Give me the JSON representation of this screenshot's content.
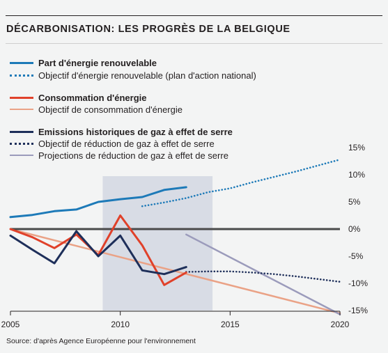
{
  "title": "DÉCARBONISATION: LES PROGRÈS DE LA BELGIQUE",
  "source": "Source: d'après Agence Européenne pour l'environnement",
  "colors": {
    "renewable": "#1d7ab8",
    "consumption": "#e0412a",
    "consumption_target": "#eaa286",
    "emissions": "#1e2f5a",
    "projection": "#9b9bbb",
    "zero_line": "#4a4a4a",
    "highlight": "#d8dce5"
  },
  "legend": [
    {
      "label": "Part d'énergie renouvelable",
      "style": "solid",
      "color": "#1d7ab8",
      "bold": true
    },
    {
      "label": "Objectif d'énergie renouvelable (plan d'action national)",
      "style": "dotted",
      "color": "#1d7ab8",
      "bold": false
    },
    {
      "label": "Consommation d'énergie",
      "style": "solid",
      "color": "#e0412a",
      "bold": true
    },
    {
      "label": "Objectif de consommation d'énergie",
      "style": "thin",
      "color": "#eaa286",
      "bold": false
    },
    {
      "label": "Emissions historiques de gaz à effet de serre",
      "style": "solid",
      "color": "#1e2f5a",
      "bold": true
    },
    {
      "label": "Objectif de réduction de gaz à effet de serre",
      "style": "dotted",
      "color": "#1e2f5a",
      "bold": false
    },
    {
      "label": "Projections de réduction de gaz à effet de serre",
      "style": "thin",
      "color": "#9b9bbb",
      "bold": false
    }
  ],
  "chart_data": {
    "type": "line",
    "title": "DÉCARBONISATION: LES PROGRÈS DE LA BELGIQUE",
    "xlabel": "",
    "ylabel": "",
    "xlim": [
      2005,
      2020
    ],
    "ylim": [
      -15,
      15
    ],
    "x_ticks": [
      "2005",
      "2010",
      "2015",
      "2020"
    ],
    "y_ticks": [
      "15%",
      "10%",
      "5%",
      "0%",
      "-5%",
      "-10%",
      "-15%"
    ],
    "y_tick_values": [
      15,
      10,
      5,
      0,
      -5,
      -10,
      -15
    ],
    "highlight_range": [
      2009.2,
      2014.2
    ],
    "zero_line": 0,
    "grid": false,
    "series": [
      {
        "name": "Part d'énergie renouvelable",
        "style": "solid",
        "color": "#1d7ab8",
        "x": [
          2005,
          2006,
          2007,
          2008,
          2009,
          2010,
          2011,
          2012,
          2013
        ],
        "y": [
          2.2,
          2.6,
          3.3,
          3.6,
          5.0,
          5.5,
          5.9,
          7.2,
          7.7
        ]
      },
      {
        "name": "Objectif d'énergie renouvelable (plan d'action national)",
        "style": "dotted",
        "color": "#1d7ab8",
        "x": [
          2011,
          2012,
          2013,
          2014,
          2015,
          2016,
          2017,
          2018,
          2019,
          2020
        ],
        "y": [
          4.2,
          4.9,
          5.7,
          6.8,
          7.5,
          8.6,
          9.6,
          10.6,
          11.7,
          12.8
        ]
      },
      {
        "name": "Consommation d'énergie",
        "style": "solid",
        "color": "#e0412a",
        "x": [
          2005,
          2006,
          2007,
          2008,
          2009,
          2010,
          2011,
          2012,
          2013
        ],
        "y": [
          0.0,
          -1.5,
          -3.5,
          -1.0,
          -4.8,
          2.5,
          -3.0,
          -10.3,
          -8.0
        ]
      },
      {
        "name": "Objectif de consommation d'énergie",
        "style": "thin",
        "color": "#eaa286",
        "x": [
          2005,
          2020
        ],
        "y": [
          0.0,
          -15.5
        ]
      },
      {
        "name": "Emissions historiques de gaz à effet de serre",
        "style": "solid",
        "color": "#1e2f5a",
        "x": [
          2005,
          2006,
          2007,
          2008,
          2009,
          2010,
          2011,
          2012,
          2013
        ],
        "y": [
          -1.2,
          -3.8,
          -6.3,
          -0.4,
          -5.0,
          -1.2,
          -7.6,
          -8.3,
          -7.0
        ]
      },
      {
        "name": "Objectif de réduction de gaz à effet de serre",
        "style": "dotted",
        "color": "#1e2f5a",
        "x": [
          2013,
          2014,
          2015,
          2016,
          2017,
          2018,
          2019,
          2020
        ],
        "y": [
          -7.9,
          -7.8,
          -7.8,
          -8.0,
          -8.3,
          -8.7,
          -9.2,
          -9.7
        ]
      },
      {
        "name": "Projections de réduction de gaz à effet de serre",
        "style": "thin",
        "color": "#9b9bbb",
        "x": [
          2013,
          2020
        ],
        "y": [
          -1.0,
          -15.7
        ]
      }
    ]
  }
}
